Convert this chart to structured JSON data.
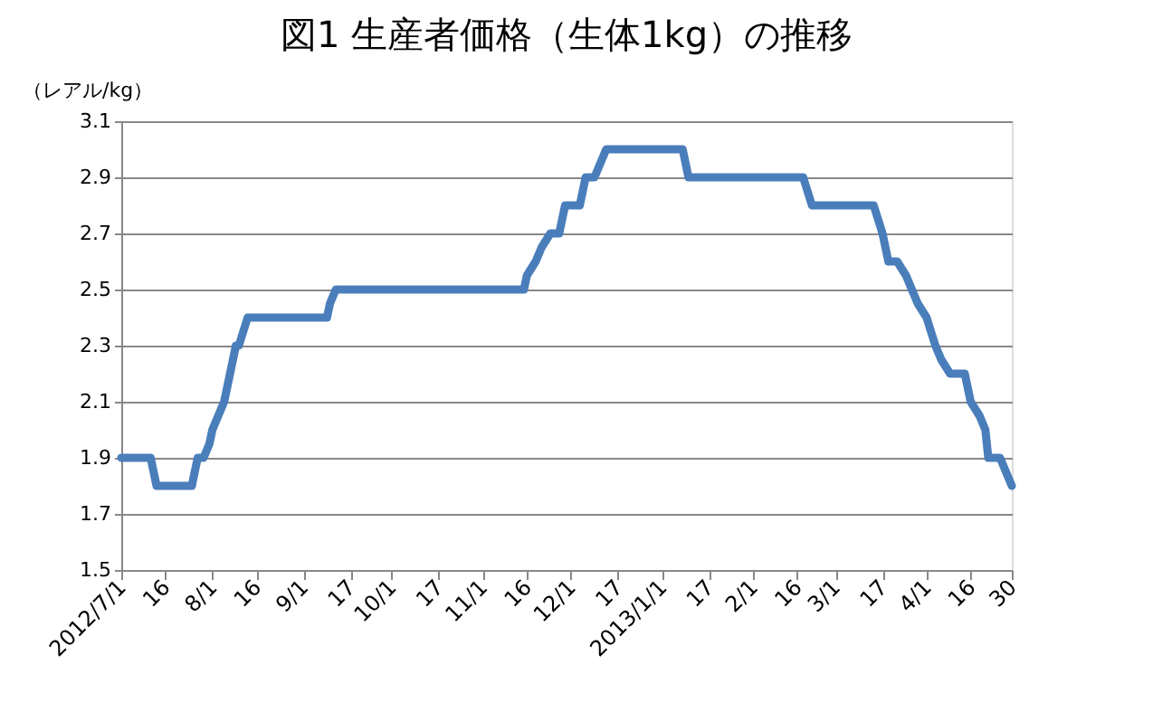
{
  "chart_data": {
    "type": "line",
    "title": "図1  生産者価格（生体1kg）の推移",
    "ylabel": "（レアル/kg）",
    "x": [
      "2012-07-01",
      "2012-07-11",
      "2012-07-13",
      "2012-07-25",
      "2012-07-27",
      "2012-07-29",
      "2012-07-31",
      "2012-08-01",
      "2012-08-03",
      "2012-08-05",
      "2012-08-09",
      "2012-08-10",
      "2012-08-13",
      "2012-09-09",
      "2012-09-10",
      "2012-09-12",
      "2012-11-15",
      "2012-11-16",
      "2012-11-19",
      "2012-11-21",
      "2012-11-24",
      "2012-11-27",
      "2012-11-29",
      "2012-12-04",
      "2012-12-06",
      "2012-12-09",
      "2012-12-11",
      "2012-12-13",
      "2013-01-08",
      "2013-01-10",
      "2013-02-18",
      "2013-02-21",
      "2013-03-14",
      "2013-03-17",
      "2013-03-19",
      "2013-03-22",
      "2013-03-25",
      "2013-03-27",
      "2013-03-29",
      "2013-04-01",
      "2013-04-04",
      "2013-04-06",
      "2013-04-09",
      "2013-04-14",
      "2013-04-16",
      "2013-04-19",
      "2013-04-21",
      "2013-04-22",
      "2013-04-26",
      "2013-04-30"
    ],
    "series": [
      {
        "color": "#4a7ebb",
        "values": [
          1.9,
          1.9,
          1.8,
          1.8,
          1.9,
          1.9,
          1.95,
          2.0,
          2.05,
          2.1,
          2.3,
          2.3,
          2.4,
          2.4,
          2.45,
          2.5,
          2.5,
          2.55,
          2.6,
          2.65,
          2.7,
          2.7,
          2.8,
          2.8,
          2.9,
          2.9,
          2.95,
          3.0,
          3.0,
          2.9,
          2.9,
          2.8,
          2.8,
          2.7,
          2.6,
          2.6,
          2.55,
          2.5,
          2.45,
          2.4,
          2.3,
          2.25,
          2.2,
          2.2,
          2.1,
          2.05,
          2.0,
          1.9,
          1.9,
          1.8
        ]
      }
    ],
    "xlim": [
      "2012-07-01",
      "2013-04-30"
    ],
    "xticks": [
      {
        "value": "2012-07-01",
        "label": "2012/7/1"
      },
      {
        "value": "2012-07-16",
        "label": "16"
      },
      {
        "value": "2012-08-01",
        "label": "8/1"
      },
      {
        "value": "2012-08-16",
        "label": "16"
      },
      {
        "value": "2012-09-01",
        "label": "9/1"
      },
      {
        "value": "2012-09-17",
        "label": "17"
      },
      {
        "value": "2012-10-01",
        "label": "10/1"
      },
      {
        "value": "2012-10-17",
        "label": "17"
      },
      {
        "value": "2012-11-01",
        "label": "11/1"
      },
      {
        "value": "2012-11-16",
        "label": "16"
      },
      {
        "value": "2012-12-01",
        "label": "12/1"
      },
      {
        "value": "2012-12-17",
        "label": "17"
      },
      {
        "value": "2013-01-01",
        "label": "2013/1/1"
      },
      {
        "value": "2013-01-17",
        "label": "17"
      },
      {
        "value": "2013-02-01",
        "label": "2/1"
      },
      {
        "value": "2013-02-16",
        "label": "16"
      },
      {
        "value": "2013-03-01",
        "label": "3/1"
      },
      {
        "value": "2013-03-17",
        "label": "17"
      },
      {
        "value": "2013-04-01",
        "label": "4/1"
      },
      {
        "value": "2013-04-16",
        "label": "16"
      },
      {
        "value": "2013-04-30",
        "label": "30"
      }
    ],
    "ylim": [
      1.5,
      3.1
    ],
    "yticks": [
      1.5,
      1.7,
      1.9,
      2.1,
      2.3,
      2.5,
      2.7,
      2.9,
      3.1
    ],
    "grid": "y",
    "legend": false,
    "marker": "none",
    "line_style": "solid"
  }
}
